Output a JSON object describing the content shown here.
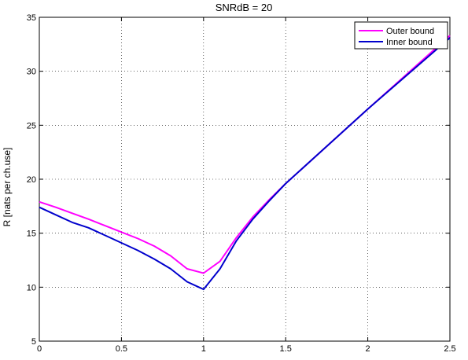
{
  "chart_data": {
    "type": "line",
    "title": "SNRdB = 20",
    "xlabel": "",
    "ylabel": "R [nats per ch.use]",
    "xlim": [
      0,
      2.5
    ],
    "ylim": [
      5,
      35
    ],
    "xticks": [
      0,
      0.5,
      1,
      1.5,
      2,
      2.5
    ],
    "xtick_labels": [
      "0",
      "0.5",
      "1",
      "1.5",
      "2",
      "2.5"
    ],
    "yticks": [
      5,
      10,
      15,
      20,
      25,
      30,
      35
    ],
    "ytick_labels": [
      "5",
      "10",
      "15",
      "20",
      "25",
      "30",
      "35"
    ],
    "grid": true,
    "legend_position": "top-right",
    "series": [
      {
        "name": "Outer bound",
        "color": "#ff00ff",
        "x": [
          0,
          0.1,
          0.2,
          0.3,
          0.4,
          0.5,
          0.6,
          0.7,
          0.8,
          0.9,
          1.0,
          1.1,
          1.2,
          1.3,
          1.4,
          1.5,
          2.0,
          2.5
        ],
        "y": [
          17.9,
          17.4,
          16.85,
          16.3,
          15.7,
          15.1,
          14.5,
          13.8,
          12.9,
          11.7,
          11.3,
          12.4,
          14.6,
          16.5,
          18.1,
          19.6,
          26.5,
          33.3
        ]
      },
      {
        "name": "Inner bound",
        "color": "#0000cc",
        "x": [
          0,
          0.1,
          0.2,
          0.3,
          0.4,
          0.5,
          0.6,
          0.7,
          0.8,
          0.9,
          1.0,
          1.1,
          1.2,
          1.3,
          1.4,
          1.5,
          2.0,
          2.5
        ],
        "y": [
          17.4,
          16.7,
          16.0,
          15.5,
          14.8,
          14.1,
          13.4,
          12.6,
          11.7,
          10.5,
          9.8,
          11.7,
          14.3,
          16.3,
          18.0,
          19.6,
          26.5,
          33.1
        ]
      }
    ]
  }
}
